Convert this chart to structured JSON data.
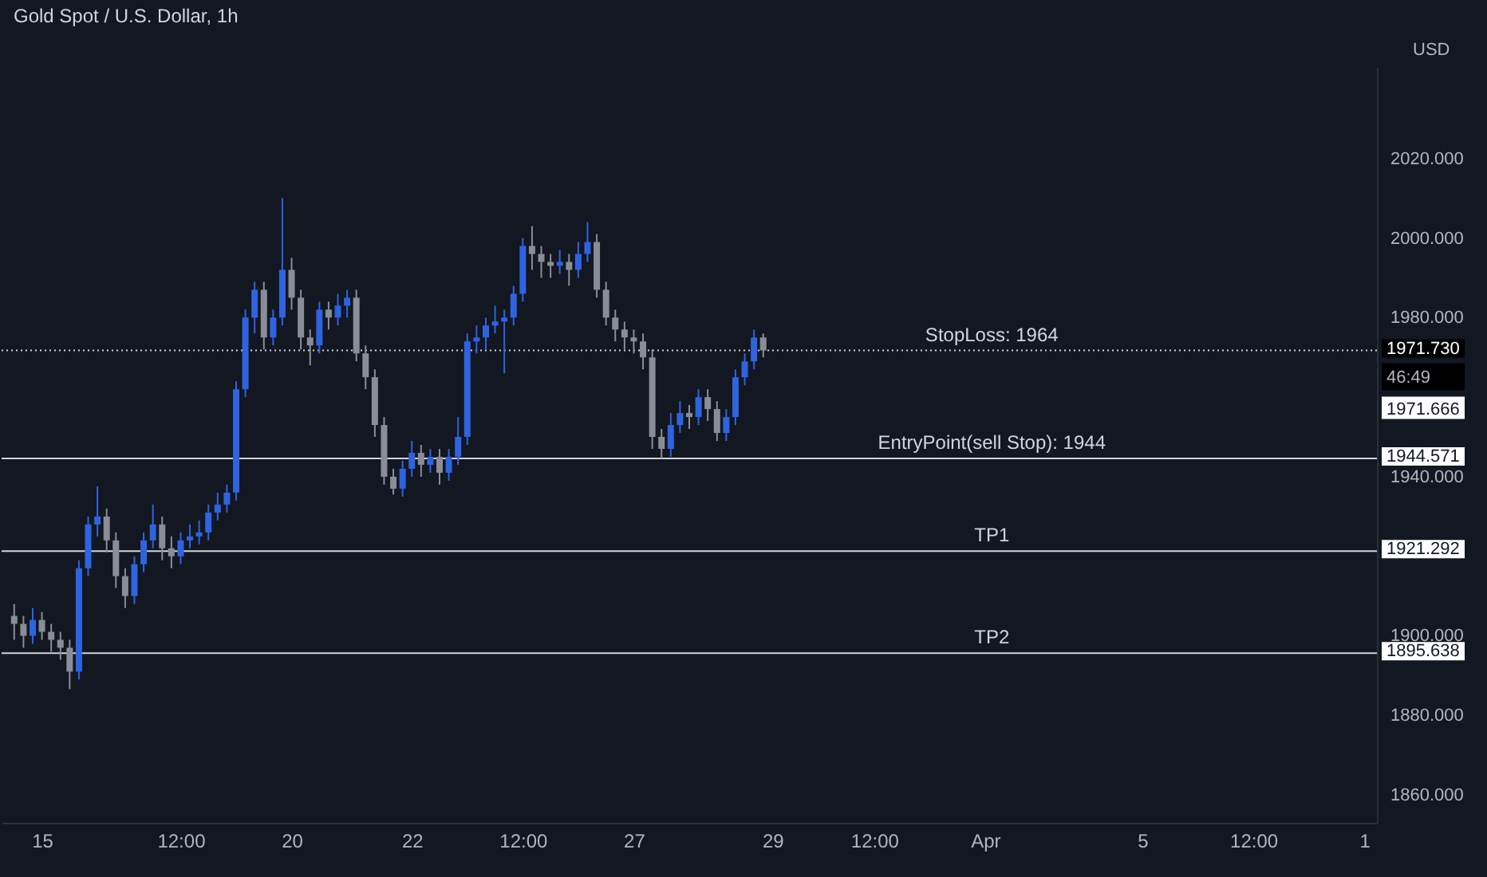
{
  "chart_data": {
    "type": "candlestick",
    "title": "Gold Spot / U.S. Dollar, 1h",
    "ylabel": "USD",
    "categories": [
      null,
      null,
      null,
      "15",
      null,
      null,
      null,
      null,
      null,
      null,
      null,
      null,
      null,
      null,
      null,
      null,
      null,
      null,
      "12:00",
      null,
      null,
      null,
      null,
      null,
      null,
      null,
      null,
      null,
      null,
      null,
      "20",
      null,
      null,
      null,
      null,
      null,
      null,
      null,
      null,
      null,
      null,
      null,
      null,
      "22",
      null,
      null,
      null,
      null,
      null,
      null,
      null,
      null,
      null,
      null,
      null,
      "12:00",
      null,
      null,
      null,
      null,
      null,
      null,
      null,
      null,
      null,
      null,
      null,
      "27",
      null,
      null,
      null,
      null,
      null,
      null,
      null,
      null,
      null,
      null,
      null,
      null,
      null,
      null,
      "29",
      null,
      null,
      null,
      null,
      null,
      null,
      null,
      null,
      null,
      null,
      "12:00",
      null,
      null,
      null,
      null,
      null,
      null,
      null,
      null,
      null,
      null,
      null,
      "Apr",
      null,
      null,
      null,
      null,
      null,
      null,
      null,
      null,
      null,
      null,
      null,
      null,
      null,
      null,
      null,
      null,
      "5",
      null,
      null,
      null,
      null,
      null,
      null,
      null,
      null,
      null,
      null,
      null,
      "12:00",
      null,
      null,
      null,
      null,
      null,
      null,
      null,
      null,
      null,
      null,
      null,
      "1"
    ],
    "ohlc": [
      [
        1905,
        1908,
        1899,
        1903
      ],
      [
        1903,
        1905,
        1897,
        1900
      ],
      [
        1900,
        1907,
        1898,
        1904
      ],
      [
        1904,
        1906,
        1899,
        1901
      ],
      [
        1901,
        1903,
        1896,
        1899
      ],
      [
        1899,
        1901,
        1894,
        1897
      ],
      [
        1897,
        1899,
        1886.6,
        1891
      ],
      [
        1891,
        1919,
        1889,
        1917
      ],
      [
        1917,
        1930,
        1915,
        1928
      ],
      [
        1928,
        1937.6,
        1925,
        1930
      ],
      [
        1930,
        1932,
        1921,
        1924
      ],
      [
        1924,
        1926,
        1912,
        1915
      ],
      [
        1915,
        1917,
        1907,
        1910
      ],
      [
        1910,
        1920,
        1908,
        1918
      ],
      [
        1918,
        1926,
        1916,
        1924
      ],
      [
        1924,
        1933,
        1922,
        1928
      ],
      [
        1928,
        1930,
        1919,
        1922
      ],
      [
        1922,
        1925,
        1917,
        1920
      ],
      [
        1920,
        1926,
        1918,
        1924
      ],
      [
        1924,
        1928,
        1922,
        1925
      ],
      [
        1925,
        1929,
        1923,
        1926
      ],
      [
        1926,
        1933,
        1924,
        1931
      ],
      [
        1931,
        1936,
        1929,
        1933
      ],
      [
        1933,
        1938,
        1931,
        1936
      ],
      [
        1936,
        1964,
        1934,
        1962
      ],
      [
        1962,
        1982,
        1960,
        1980
      ],
      [
        1980,
        1989,
        1976,
        1987
      ],
      [
        1987,
        1989,
        1972,
        1975
      ],
      [
        1975,
        1982,
        1973,
        1980
      ],
      [
        1980,
        2010,
        1978,
        1992
      ],
      [
        1992,
        1995,
        1982,
        1985
      ],
      [
        1985,
        1987,
        1972,
        1975
      ],
      [
        1975,
        1977,
        1968,
        1973
      ],
      [
        1973,
        1984,
        1971,
        1982
      ],
      [
        1982,
        1984,
        1977,
        1980
      ],
      [
        1980,
        1986,
        1978,
        1983
      ],
      [
        1983,
        1987,
        1980,
        1985
      ],
      [
        1985,
        1987,
        1969,
        1971
      ],
      [
        1971,
        1973,
        1962,
        1965
      ],
      [
        1965,
        1967,
        1950,
        1953
      ],
      [
        1953,
        1955,
        1938,
        1940
      ],
      [
        1940,
        1942,
        1935.5,
        1937
      ],
      [
        1937,
        1944,
        1935,
        1942
      ],
      [
        1942,
        1949,
        1940,
        1946
      ],
      [
        1946,
        1948,
        1940,
        1943
      ],
      [
        1943,
        1947,
        1941,
        1945
      ],
      [
        1945,
        1947,
        1938,
        1941
      ],
      [
        1941,
        1947,
        1939,
        1945
      ],
      [
        1945,
        1955,
        1943,
        1950
      ],
      [
        1950,
        1976,
        1948,
        1974
      ],
      [
        1974,
        1978,
        1971,
        1975
      ],
      [
        1975,
        1980,
        1972,
        1978
      ],
      [
        1978,
        1983,
        1976,
        1979
      ],
      [
        1979,
        1982,
        1966,
        1980
      ],
      [
        1980,
        1988,
        1978,
        1986
      ],
      [
        1986,
        2000,
        1984,
        1998
      ],
      [
        1998,
        2003,
        1992,
        1996
      ],
      [
        1996,
        1998,
        1990,
        1994
      ],
      [
        1994,
        1996,
        1990,
        1993
      ],
      [
        1993,
        1997,
        1991,
        1994
      ],
      [
        1994,
        1996,
        1988,
        1992
      ],
      [
        1992,
        1999,
        1990,
        1996
      ],
      [
        1996,
        2004,
        1994,
        1999
      ],
      [
        1999,
        2001,
        1985,
        1987
      ],
      [
        1987,
        1989,
        1978,
        1980
      ],
      [
        1980,
        1982,
        1974,
        1977
      ],
      [
        1977,
        1979,
        1972,
        1975
      ],
      [
        1975,
        1977,
        1971,
        1974
      ],
      [
        1974,
        1976,
        1967,
        1970
      ],
      [
        1970,
        1972,
        1947,
        1950
      ],
      [
        1950,
        1952,
        1944.6,
        1947
      ],
      [
        1947,
        1956,
        1945,
        1953
      ],
      [
        1953,
        1959,
        1951,
        1956
      ],
      [
        1956,
        1958,
        1952,
        1955
      ],
      [
        1955,
        1962,
        1953,
        1960
      ],
      [
        1960,
        1962,
        1954,
        1957
      ],
      [
        1957,
        1959,
        1949,
        1951
      ],
      [
        1951,
        1957,
        1949,
        1955
      ],
      [
        1955,
        1967,
        1953,
        1965
      ],
      [
        1965,
        1971,
        1963,
        1969
      ],
      [
        1969,
        1977,
        1967,
        1975
      ],
      [
        1975,
        1976,
        1970,
        1971.73
      ],
      null,
      null,
      null,
      null,
      null,
      null,
      null,
      null,
      null,
      null,
      null,
      null,
      null,
      null,
      null,
      null,
      null,
      null,
      null,
      null,
      null,
      null,
      null,
      null,
      null,
      null,
      null,
      null,
      null,
      null,
      null,
      null,
      null,
      null,
      null,
      null,
      null,
      null,
      null,
      null,
      null,
      null,
      null,
      null,
      null,
      null,
      null,
      null,
      null,
      null,
      null,
      null,
      null,
      null,
      null,
      null,
      null,
      null,
      null,
      null,
      null,
      null,
      null,
      null,
      null
    ],
    "colors": [
      "#8a8d96",
      "#8a8d96",
      "#2f63e0",
      "#8a8d96",
      "#8a8d96",
      "#8a8d96",
      "#8a8d96",
      "#2f63e0",
      "#2f63e0",
      "#2f63e0",
      "#8a8d96",
      "#8a8d96",
      "#8a8d96",
      "#2f63e0",
      "#2f63e0",
      "#2f63e0",
      "#8a8d96",
      "#8a8d96",
      "#2f63e0",
      "#2f63e0",
      "#2f63e0",
      "#2f63e0",
      "#2f63e0",
      "#2f63e0",
      "#2f63e0",
      "#2f63e0",
      "#2f63e0",
      "#8a8d96",
      "#2f63e0",
      "#2f63e0",
      "#8a8d96",
      "#8a8d96",
      "#8a8d96",
      "#2f63e0",
      "#8a8d96",
      "#2f63e0",
      "#2f63e0",
      "#8a8d96",
      "#8a8d96",
      "#8a8d96",
      "#8a8d96",
      "#8a8d96",
      "#2f63e0",
      "#2f63e0",
      "#8a8d96",
      "#2f63e0",
      "#8a8d96",
      "#2f63e0",
      "#2f63e0",
      "#2f63e0",
      "#2f63e0",
      "#2f63e0",
      "#2f63e0",
      "#2f63e0",
      "#2f63e0",
      "#2f63e0",
      "#8a8d96",
      "#8a8d96",
      "#8a8d96",
      "#2f63e0",
      "#8a8d96",
      "#2f63e0",
      "#2f63e0",
      "#8a8d96",
      "#8a8d96",
      "#8a8d96",
      "#8a8d96",
      "#8a8d96",
      "#8a8d96",
      "#8a8d96",
      "#8a8d96",
      "#2f63e0",
      "#2f63e0",
      "#8a8d96",
      "#2f63e0",
      "#8a8d96",
      "#8a8d96",
      "#2f63e0",
      "#2f63e0",
      "#2f63e0",
      "#2f63e0",
      "#8a8d96",
      null,
      null,
      null,
      null,
      null,
      null,
      null,
      null,
      null,
      null,
      null,
      null,
      null,
      null,
      null,
      null,
      null,
      null,
      null,
      null,
      null,
      null,
      null,
      null,
      null,
      null,
      null,
      null,
      null,
      null,
      null,
      null,
      null,
      null,
      null,
      null,
      null,
      null,
      null,
      null,
      null,
      null,
      null,
      null,
      null,
      null,
      null,
      null,
      null,
      null,
      null,
      null,
      null,
      null,
      null,
      null,
      null,
      null,
      null,
      null,
      null,
      null,
      null,
      null,
      null
    ],
    "ylim": [
      1853,
      2043
    ],
    "yticks": [
      {
        "value": 1860,
        "label": "1860.000"
      },
      {
        "value": 1880,
        "label": "1880.000"
      },
      {
        "value": 1900,
        "label": "1900.000"
      },
      {
        "value": 1940,
        "label": "1940.000"
      },
      {
        "value": 1980,
        "label": "1980.000"
      },
      {
        "value": 2000,
        "label": "2000.000"
      },
      {
        "value": 2020,
        "label": "2020.000"
      }
    ],
    "ref_lines": [
      {
        "axis": "y",
        "value": 1971.73,
        "label": "1971.730",
        "color": "#d1d4dc",
        "line_style": "dotted"
      },
      {
        "axis": "y",
        "value": 1944.571,
        "label": "1944.571",
        "color": "#d1d4dc",
        "line_style": "solid"
      },
      {
        "axis": "y",
        "value": 1921.292,
        "label": "1921.292",
        "color": "#d1d4dc",
        "line_style": "solid"
      },
      {
        "axis": "y",
        "value": 1895.638,
        "label": "1895.638",
        "color": "#d1d4dc",
        "line_style": "solid"
      }
    ],
    "annotations": [
      {
        "text": "StopLoss: 1964",
        "y": 1971.73
      },
      {
        "text": "EntryPoint(sell Stop): 1944",
        "y": 1944.571
      },
      {
        "text": "TP1",
        "y": 1921.292
      },
      {
        "text": "TP2",
        "y": 1895.638
      },
      "46:49",
      "1971.666"
    ]
  }
}
